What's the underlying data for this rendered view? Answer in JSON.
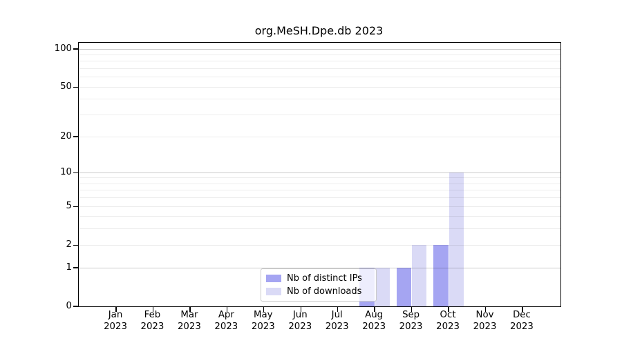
{
  "title": "org.MeSH.Dpe.db 2023",
  "colors": {
    "distinct_ips": "#a5a5f2",
    "downloads": "#dadaf6",
    "grid_major": "#c9c9c9",
    "grid_minor": "#ededed",
    "axis": "#000000",
    "legend_border": "#c9c9c9"
  },
  "chart_data": {
    "type": "bar",
    "title": "org.MeSH.Dpe.db 2023",
    "categories": [
      "Jan",
      "Feb",
      "Mar",
      "Apr",
      "May",
      "Jun",
      "Jul",
      "Aug",
      "Sep",
      "Oct",
      "Nov",
      "Dec"
    ],
    "x_tick_year": "2023",
    "series": [
      {
        "name": "Nb of distinct IPs",
        "color": "#a5a5f2",
        "values": [
          0,
          0,
          0,
          0,
          0,
          0,
          0,
          1,
          1,
          2,
          0,
          0
        ]
      },
      {
        "name": "Nb of downloads",
        "color": "#dadaf6",
        "values": [
          0,
          0,
          0,
          0,
          0,
          0,
          0,
          1,
          2,
          10,
          0,
          0
        ]
      }
    ],
    "xlabel": "",
    "ylabel": "",
    "y_axis": {
      "scale": "log10(value+1)",
      "tick_values": [
        0,
        1,
        2,
        5,
        10,
        20,
        50,
        100
      ],
      "major_gridlines": [
        1,
        10,
        100
      ],
      "minor_gridlines": [
        2,
        3,
        4,
        5,
        6,
        7,
        8,
        9,
        20,
        30,
        40,
        50,
        60,
        70,
        80,
        90
      ],
      "ylim": [
        0,
        112
      ]
    },
    "grid": true,
    "legend": {
      "position": "bottom-center",
      "items": [
        {
          "label": "Nb of distinct IPs",
          "color": "#a5a5f2"
        },
        {
          "label": "Nb of downloads",
          "color": "#dadaf6"
        }
      ]
    }
  }
}
